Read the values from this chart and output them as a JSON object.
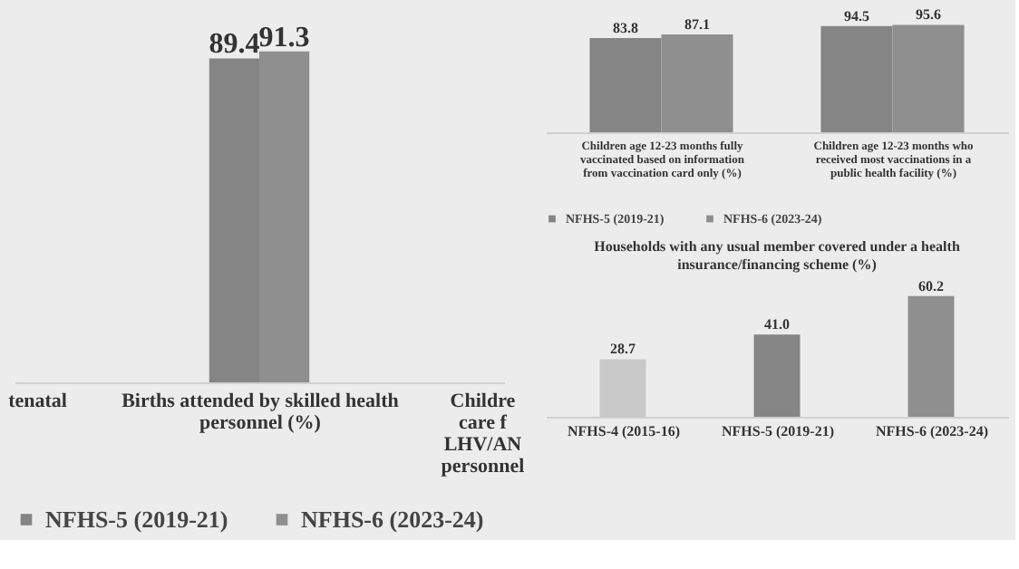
{
  "chart_data": [
    {
      "type": "bar",
      "categories": [
        "tenatal",
        "Births attended by skilled health personnel (%)",
        "Childre\ncare f\nLHV/AN\npersonnel"
      ],
      "series": [
        {
          "name": "NFHS-5  (2019-21)",
          "color": "#858585",
          "values": [
            null,
            89.4,
            null
          ]
        },
        {
          "name": "NFHS-6  (2023-24)",
          "color": "#8f8f8f",
          "values": [
            null,
            91.3,
            null
          ]
        }
      ],
      "data_labels": true,
      "legend": "bottom",
      "grid": false
    },
    {
      "type": "bar",
      "categories": [
        "Children age 12-23 months fully vaccinated based on information from vaccination card only (%)",
        "Children age 12-23 months who received most vaccinations in a public health facility (%)"
      ],
      "series": [
        {
          "name": "NFHS-5  (2019-21)",
          "color": "#858585",
          "values": [
            83.8,
            94.5
          ]
        },
        {
          "name": "NFHS-6  (2023-24)",
          "color": "#8f8f8f",
          "values": [
            87.1,
            95.6
          ]
        }
      ],
      "data_labels": true,
      "legend": "bottom",
      "grid": false
    },
    {
      "type": "bar",
      "title": "Households with any usual member covered under a health insurance/financing scheme (%)",
      "categories": [
        "NFHS-4 (2015-16)",
        "NFHS-5 (2019-21)",
        "NFHS-6 (2023-24)"
      ],
      "values": [
        28.7,
        41.0,
        60.2
      ],
      "value_labels": [
        "28.7",
        "41.0",
        "60.2"
      ],
      "colors": [
        "#c9c9c9",
        "#858585",
        "#8f8f8f"
      ],
      "data_labels": true,
      "legend": false,
      "grid": false
    }
  ]
}
